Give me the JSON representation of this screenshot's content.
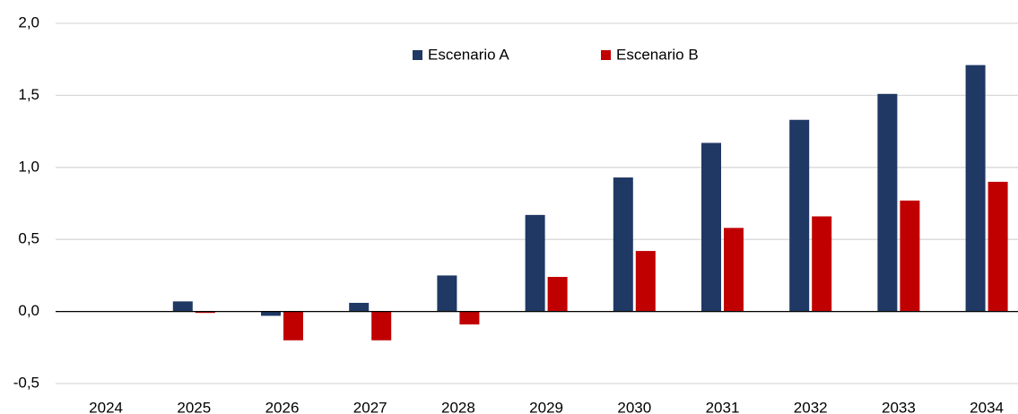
{
  "chart_data": {
    "type": "bar",
    "categories": [
      "2024",
      "2025",
      "2026",
      "2027",
      "2028",
      "2029",
      "2030",
      "2031",
      "2032",
      "2033",
      "2034"
    ],
    "series": [
      {
        "name": "Escenario A",
        "color": "#1f3864",
        "values": [
          0,
          0.07,
          -0.03,
          0.06,
          0.25,
          0.67,
          0.93,
          1.17,
          1.33,
          1.51,
          1.71
        ]
      },
      {
        "name": "Escenario B",
        "color": "#c00000",
        "values": [
          0,
          -0.01,
          -0.2,
          -0.2,
          -0.09,
          0.24,
          0.42,
          0.58,
          0.66,
          0.77,
          0.9
        ]
      }
    ],
    "ylim": [
      -0.5,
      2.0
    ],
    "yticks": [
      {
        "value": -0.5,
        "label": "-0,5"
      },
      {
        "value": 0,
        "label": "0,0"
      },
      {
        "value": 0.5,
        "label": "0,5"
      },
      {
        "value": 1.0,
        "label": "1,0"
      },
      {
        "value": 1.5,
        "label": "1,5"
      },
      {
        "value": 2.0,
        "label": "2,0"
      }
    ],
    "grid": true,
    "legend": "top"
  }
}
